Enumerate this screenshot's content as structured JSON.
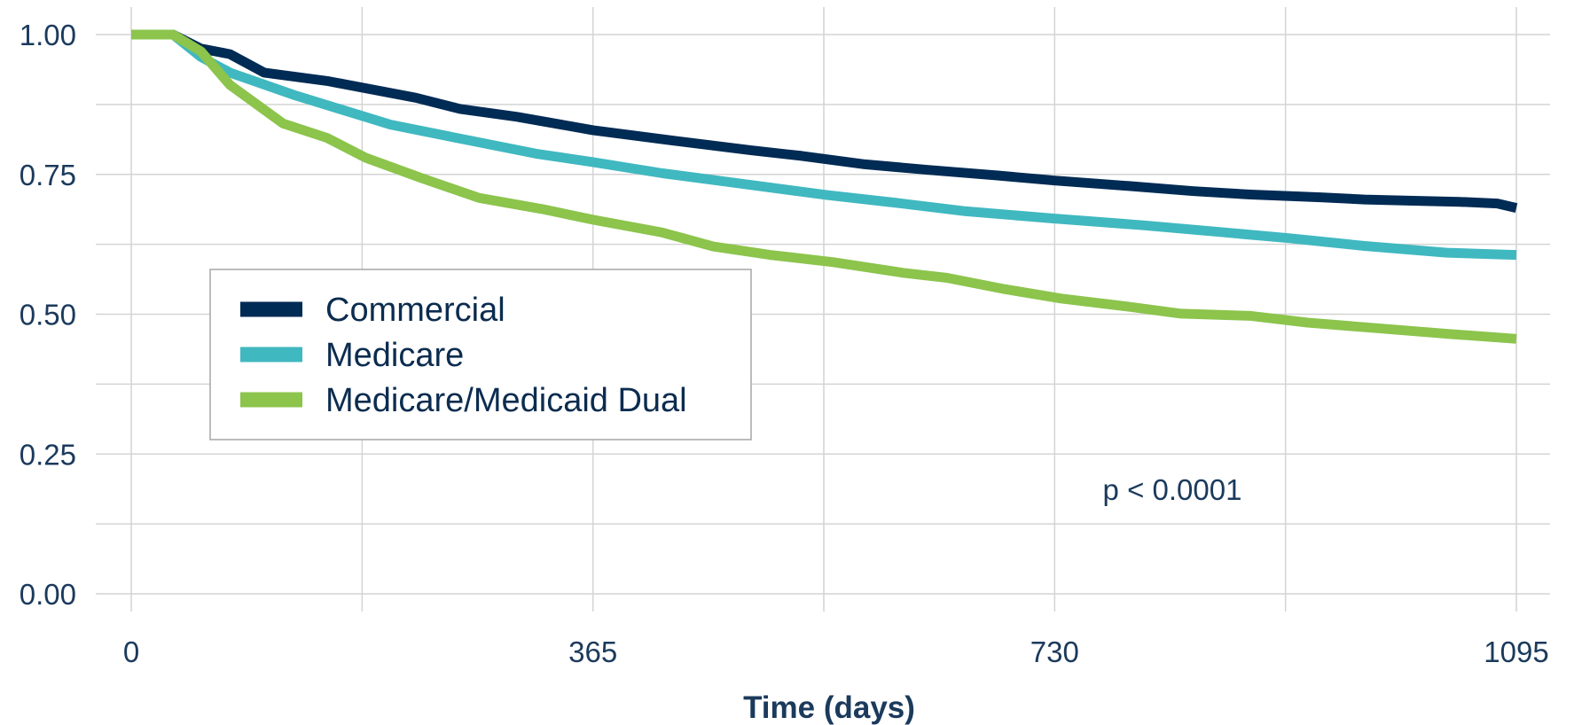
{
  "chart_data": {
    "type": "line",
    "title": "",
    "xlabel": "Time (days)",
    "ylabel": "",
    "xlim": [
      0,
      1095
    ],
    "ylim": [
      0,
      1.0
    ],
    "x_ticks": [
      "0",
      "365",
      "730",
      "1095"
    ],
    "x_tick_values": [
      0,
      365,
      730,
      1095
    ],
    "y_ticks": [
      "0.00",
      "0.25",
      "0.50",
      "0.75",
      "1.00"
    ],
    "y_tick_values": [
      0,
      0.25,
      0.5,
      0.75,
      1.0
    ],
    "grid": true,
    "legend_position": "center-left",
    "annotation": "p < 0.0001",
    "series": [
      {
        "name": "Commercial",
        "color": "#002b54",
        "x": [
          0,
          33,
          55,
          78,
          105,
          155,
          225,
          260,
          305,
          365,
          430,
          490,
          530,
          580,
          630,
          685,
          730,
          790,
          840,
          885,
          940,
          975,
          1010,
          1050,
          1080,
          1095
        ],
        "y": [
          1.0,
          1.0,
          0.975,
          0.965,
          0.932,
          0.917,
          0.887,
          0.867,
          0.853,
          0.829,
          0.81,
          0.793,
          0.783,
          0.768,
          0.758,
          0.748,
          0.739,
          0.729,
          0.72,
          0.714,
          0.709,
          0.705,
          0.703,
          0.701,
          0.698,
          0.69
        ]
      },
      {
        "name": "Medicare",
        "color": "#40b8c0",
        "x": [
          0,
          33,
          55,
          78,
          130,
          205,
          260,
          320,
          365,
          420,
          480,
          550,
          605,
          660,
          730,
          800,
          860,
          915,
          975,
          1040,
          1080,
          1095
        ],
        "y": [
          1.0,
          1.0,
          0.96,
          0.932,
          0.891,
          0.839,
          0.814,
          0.787,
          0.772,
          0.752,
          0.734,
          0.713,
          0.699,
          0.684,
          0.671,
          0.659,
          0.647,
          0.636,
          0.622,
          0.61,
          0.607,
          0.606
        ]
      },
      {
        "name": "Medicare/Medicaid Dual",
        "color": "#8cc44c",
        "x": [
          0,
          33,
          55,
          78,
          120,
          155,
          185,
          230,
          275,
          325,
          365,
          420,
          460,
          505,
          555,
          610,
          645,
          690,
          735,
          790,
          830,
          885,
          930,
          985,
          1040,
          1095
        ],
        "y": [
          1.0,
          1.0,
          0.97,
          0.91,
          0.841,
          0.815,
          0.78,
          0.743,
          0.708,
          0.688,
          0.669,
          0.646,
          0.621,
          0.606,
          0.593,
          0.574,
          0.565,
          0.545,
          0.528,
          0.513,
          0.501,
          0.497,
          0.485,
          0.475,
          0.465,
          0.456
        ]
      }
    ]
  }
}
